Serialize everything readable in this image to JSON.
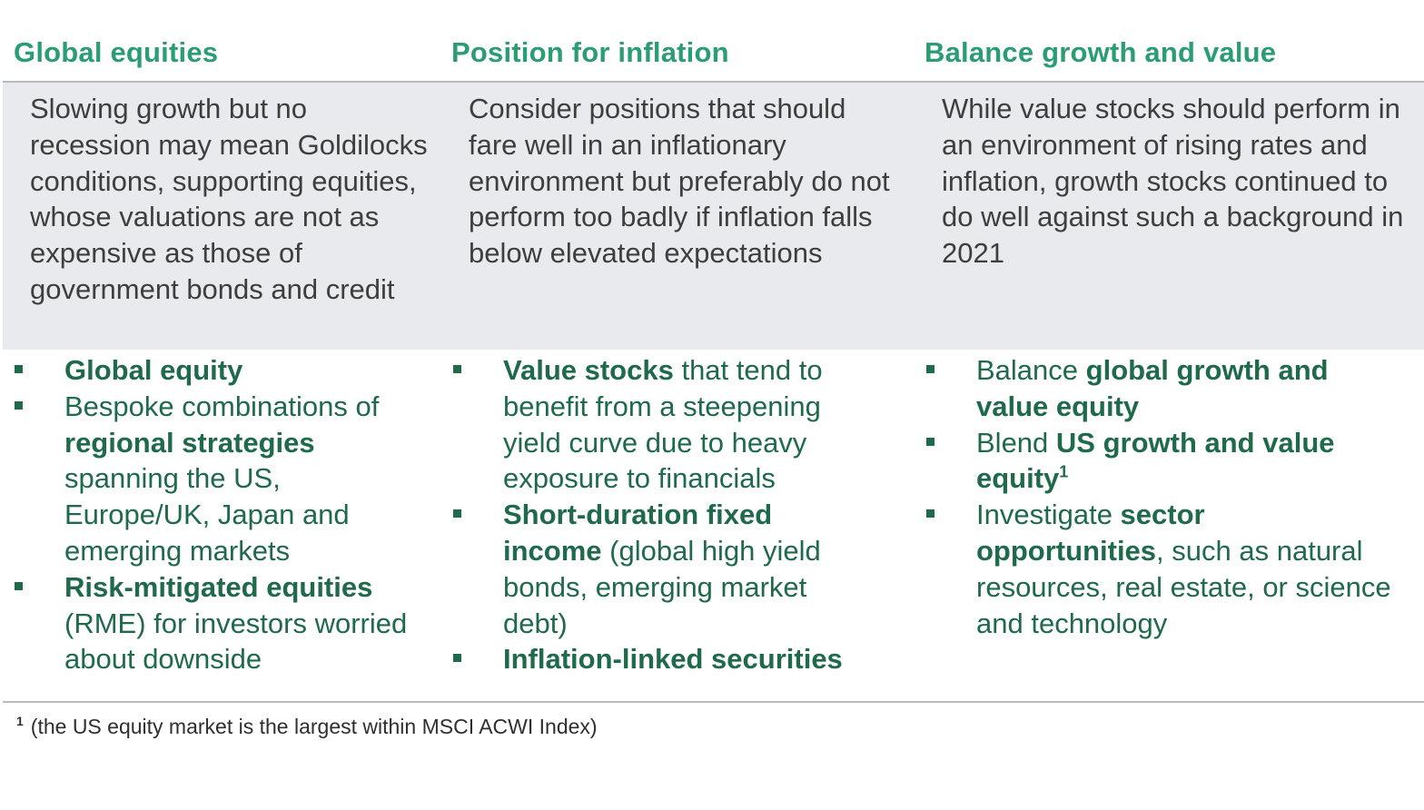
{
  "columns": [
    {
      "title": "Global equities",
      "summary": "Slowing growth but no recession may mean Goldilocks conditions, supporting equities, whose valuations are not as expensive as those of government bonds and credit",
      "bullets": [
        {
          "bold": "Global equity"
        },
        {
          "text_before": "Bespoke combinations of ",
          "bold": "regional strategies",
          "text_after": " spanning the US, Europe/UK, Japan and emerging markets"
        },
        {
          "bold": "Risk-mitigated equities",
          "text_after": " (RME) for investors worried about downside"
        }
      ]
    },
    {
      "title": "Position for inflation",
      "summary": "Consider positions that should fare well in an inflationary environment but preferably do not perform too badly if inflation falls below elevated expectations",
      "bullets": [
        {
          "bold": "Value stocks",
          "text_after": " that tend to benefit from a steepening yield curve due to heavy exposure to financials"
        },
        {
          "bold": "Short-duration fixed income",
          "text_after": " (global high yield bonds, emerging market debt)"
        },
        {
          "bold": "Inflation-linked securities"
        }
      ]
    },
    {
      "title": "Balance growth and value",
      "summary": "While value stocks should perform in an environment of rising rates and inflation, growth stocks continued to do well against such a background in 2021",
      "bullets": [
        {
          "text_before": "Balance ",
          "bold": "global growth and value equity"
        },
        {
          "text_before": "Blend ",
          "bold": "US growth and value equity",
          "sup": "1"
        },
        {
          "text_before": "Investigate ",
          "bold": "sector opportunities",
          "text_after": ", such as natural resources, real estate, or science and technology"
        }
      ]
    }
  ],
  "footnote": {
    "marker": "1",
    "text": "(the US equity market is the largest within MSCI ACWI Index)"
  },
  "colors": {
    "title_green": "#2a9d73",
    "bullet_green": "#1e6a4b",
    "summary_band": "#e8eaed",
    "rule_gray": "#b7bcc2",
    "summary_text": "#3e3e3e"
  }
}
